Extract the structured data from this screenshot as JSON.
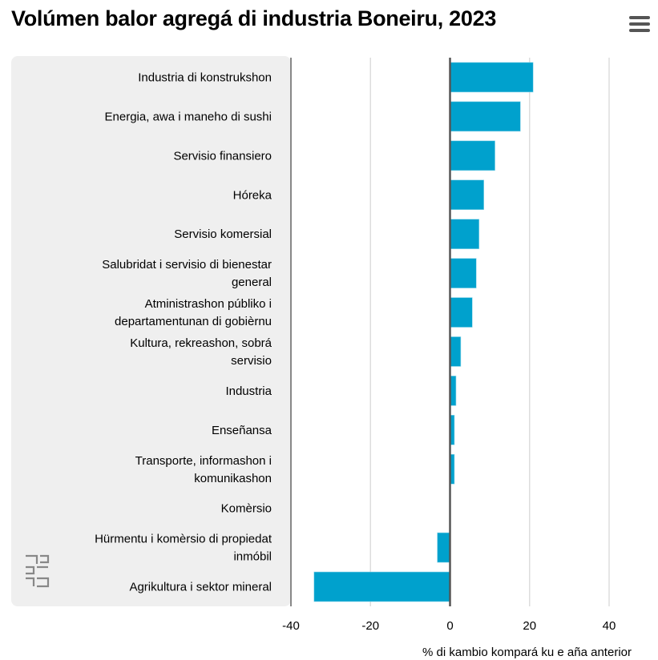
{
  "header": {
    "title": "Volúmen balor agregá di industria Boneiru, 2023",
    "menu_icon": "hamburger-menu-icon"
  },
  "chart_data": {
    "type": "bar",
    "orientation": "horizontal",
    "title": "Volúmen balor agregá di industria Boneiru, 2023",
    "xlabel": "% di kambio kompará ku e aña anterior",
    "ylabel": "",
    "xlim": [
      -40,
      40
    ],
    "xticks": [
      "-40",
      "-20",
      "0",
      "20",
      "40"
    ],
    "xtick_values": [
      -40,
      -20,
      0,
      20,
      40
    ],
    "grid": true,
    "bar_color": "#00a1cd",
    "categories": [
      [
        "Industria di konstrukshon"
      ],
      [
        "Energia, awa i maneho di sushi"
      ],
      [
        "Servisio finansiero"
      ],
      [
        "Hóreka"
      ],
      [
        "Servisio komersial"
      ],
      [
        "Salubridat i servisio di bienestar",
        "general"
      ],
      [
        "Atministrashon públiko i",
        "departamentunan di gobièrnu"
      ],
      [
        "Kultura, rekreashon, sobrá",
        "servisio"
      ],
      [
        "Industria"
      ],
      [
        "Enseñansa"
      ],
      [
        "Transporte, informashon i",
        "komunikashon"
      ],
      [
        "Komèrsio"
      ],
      [
        "Hürmentu i komèrsio di propiedat",
        "inmóbil"
      ],
      [
        "Agrikultura i sektor mineral"
      ]
    ],
    "values": [
      20.9,
      17.7,
      11.3,
      8.5,
      7.3,
      6.6,
      5.6,
      2.7,
      1.5,
      1.1,
      1.1,
      0,
      -3.2,
      -34.2
    ]
  }
}
